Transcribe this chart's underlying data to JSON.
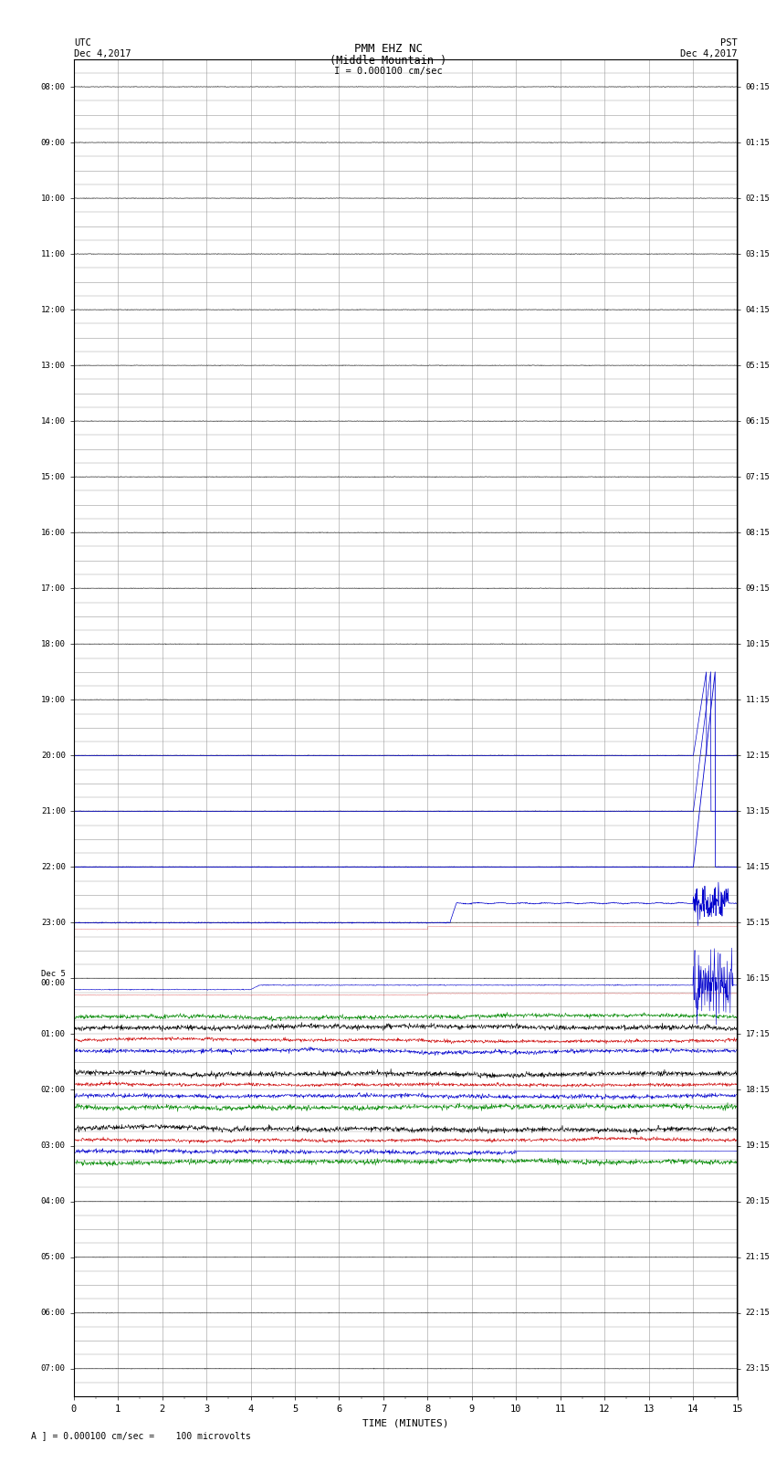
{
  "title_line1": "PMM EHZ NC",
  "title_line2": "(Middle Mountain )",
  "scale_label": "I = 0.000100 cm/sec",
  "left_header": "UTC\nDec 4,2017",
  "right_header": "PST\nDec 4,2017",
  "footer_label": "A ] = 0.000100 cm/sec =    100 microvolts",
  "xlabel": "TIME (MINUTES)",
  "left_times": [
    "08:00",
    "09:00",
    "10:00",
    "11:00",
    "12:00",
    "13:00",
    "14:00",
    "15:00",
    "16:00",
    "17:00",
    "18:00",
    "19:00",
    "20:00",
    "21:00",
    "22:00",
    "23:00",
    "Dec 5\n00:00",
    "01:00",
    "02:00",
    "03:00",
    "04:00",
    "05:00",
    "06:00",
    "07:00"
  ],
  "right_times": [
    "00:15",
    "01:15",
    "02:15",
    "03:15",
    "04:15",
    "05:15",
    "06:15",
    "07:15",
    "08:15",
    "09:15",
    "10:15",
    "11:15",
    "12:15",
    "13:15",
    "14:15",
    "15:15",
    "16:15",
    "17:15",
    "18:15",
    "19:15",
    "20:15",
    "21:15",
    "22:15",
    "23:15"
  ],
  "num_rows": 24,
  "minutes_per_row": 15,
  "x_ticks": [
    0,
    1,
    2,
    3,
    4,
    5,
    6,
    7,
    8,
    9,
    10,
    11,
    12,
    13,
    14,
    15
  ],
  "background_color": "#ffffff",
  "grid_color": "#999999",
  "figwidth": 8.5,
  "figheight": 16.13
}
